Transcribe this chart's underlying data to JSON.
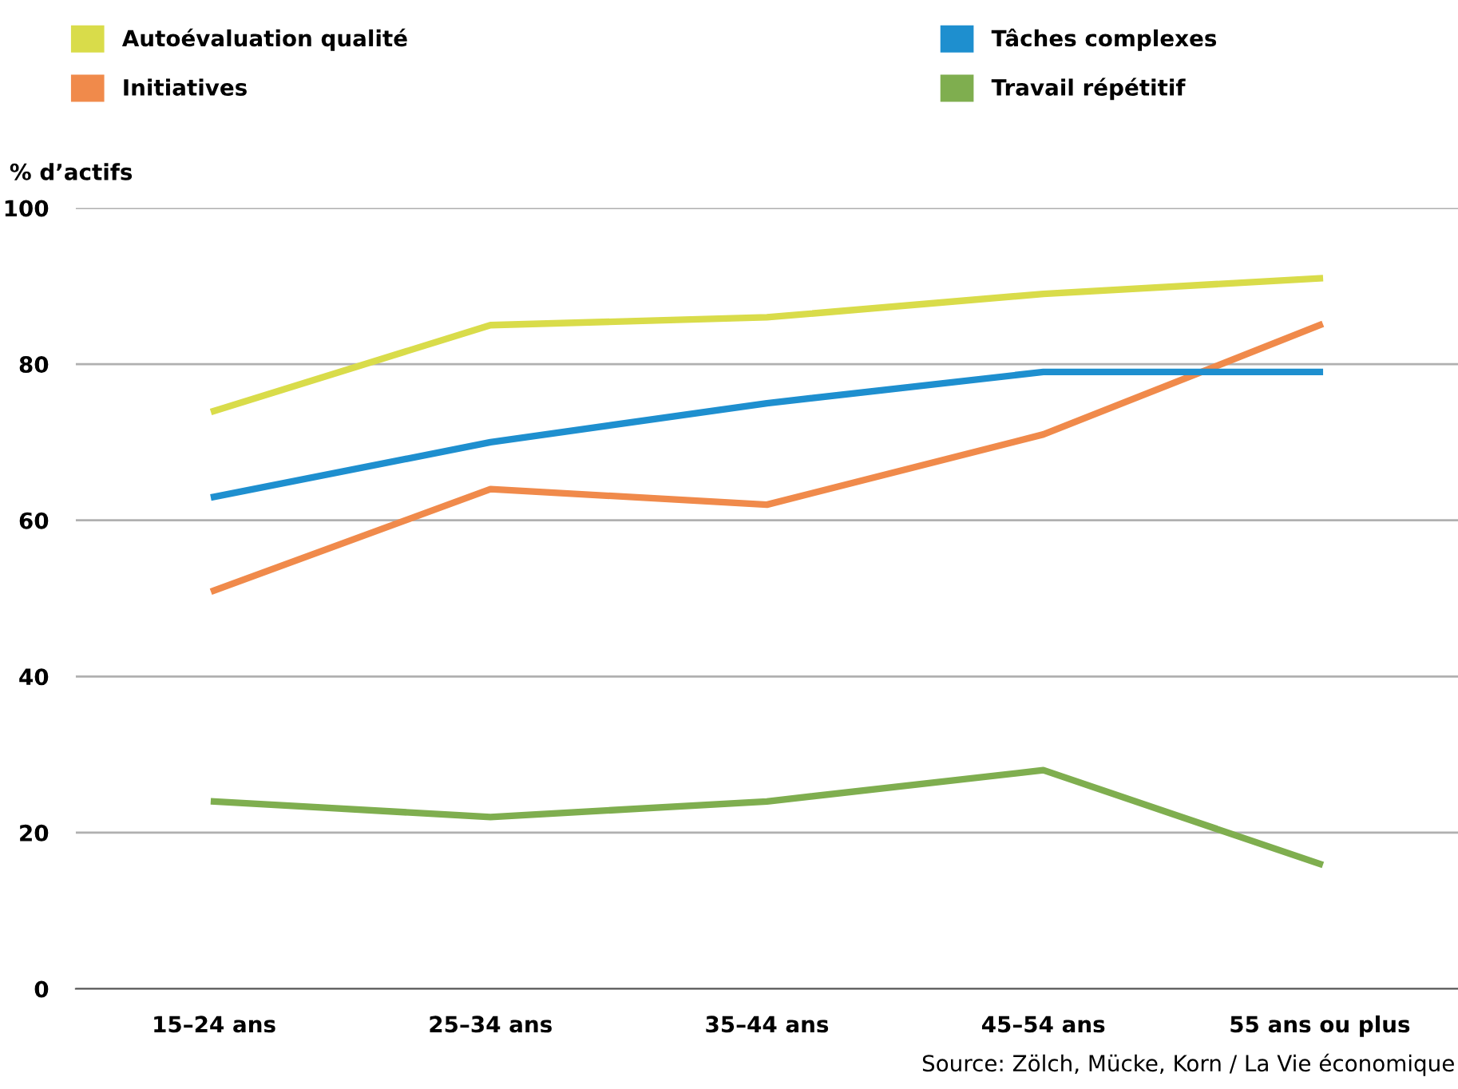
{
  "chart_data": {
    "type": "line",
    "ylabel": "% d’actifs",
    "categories": [
      "15–24 ans",
      "25–34 ans",
      "35–44 ans",
      "45–54 ans",
      "55 ans ou plus"
    ],
    "series": [
      {
        "name": "Autoévaluation qualité",
        "color": "#d9dc4a",
        "values": [
          74,
          85,
          86,
          89,
          91
        ]
      },
      {
        "name": "Initiatives",
        "color": "#f08a4b",
        "values": [
          51,
          64,
          62,
          71,
          85
        ]
      },
      {
        "name": "Tâches complexes",
        "color": "#1e8fcf",
        "values": [
          63,
          70,
          75,
          79,
          79
        ]
      },
      {
        "name": "Travail répétitif",
        "color": "#7fae4f",
        "values": [
          24,
          22,
          24,
          28,
          16
        ]
      }
    ],
    "ylim": [
      0,
      100
    ],
    "yticks": [
      0,
      20,
      40,
      60,
      80,
      100
    ],
    "grid": "y",
    "legend": "top",
    "marker": "none",
    "line_style": "solid",
    "annotations": [
      "Source: Zölch, Mücke, Korn / La Vie économique"
    ]
  }
}
